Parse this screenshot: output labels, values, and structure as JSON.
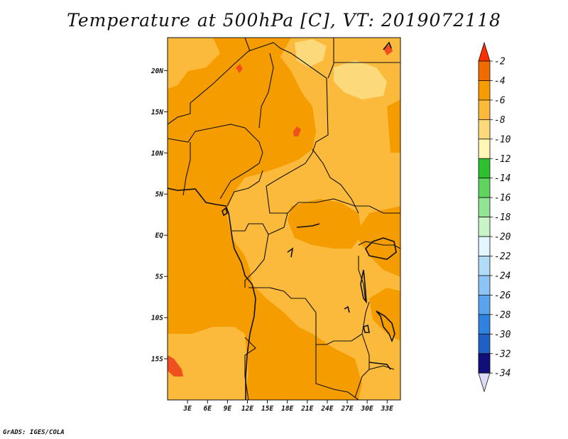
{
  "title": "Temperature at 500hPa [C], VT: 2019072118",
  "credit": "GrADS: IGES/COLA",
  "map": {
    "lon_range": [
      0,
      35
    ],
    "lat_range": [
      -20,
      24
    ],
    "lat_ticks": [
      {
        "value": 20,
        "label": "20N"
      },
      {
        "value": 15,
        "label": "15N"
      },
      {
        "value": 10,
        "label": "10N"
      },
      {
        "value": 5,
        "label": "5N"
      },
      {
        "value": 0,
        "label": "EQ"
      },
      {
        "value": -5,
        "label": "5S"
      },
      {
        "value": -10,
        "label": "10S"
      },
      {
        "value": -15,
        "label": "15S"
      }
    ],
    "lon_ticks": [
      {
        "value": 3,
        "label": "3E"
      },
      {
        "value": 6,
        "label": "6E"
      },
      {
        "value": 9,
        "label": "9E"
      },
      {
        "value": 12,
        "label": "12E"
      },
      {
        "value": 15,
        "label": "15E"
      },
      {
        "value": 18,
        "label": "18E"
      },
      {
        "value": 21,
        "label": "21E"
      },
      {
        "value": 24,
        "label": "24E"
      },
      {
        "value": 27,
        "label": "27E"
      },
      {
        "value": 30,
        "label": "30E"
      },
      {
        "value": 33,
        "label": "33E"
      }
    ],
    "field_colors": {
      "-2_to_-4": "#f06c00",
      "-4_to_-6": "#f59d00",
      "-6_to_-8": "#fbba3c",
      "-8_to_-10": "#fcd97a"
    },
    "extreme_patch_color": "#f0501e"
  },
  "colorbar": {
    "levels": [
      {
        "label": "-2",
        "color": "#ff2f00"
      },
      {
        "label": "-4",
        "color": "#f06c00"
      },
      {
        "label": "-6",
        "color": "#f59d00"
      },
      {
        "label": "-8",
        "color": "#fbba3c"
      },
      {
        "label": "-10",
        "color": "#fcd97a"
      },
      {
        "label": "-12",
        "color": "#fef6b4"
      },
      {
        "label": "-14",
        "color": "#2ec02e"
      },
      {
        "label": "-16",
        "color": "#5fd55f"
      },
      {
        "label": "-18",
        "color": "#92e592"
      },
      {
        "label": "-20",
        "color": "#c7f5c7"
      },
      {
        "label": "-22",
        "color": "#e2f7fd"
      },
      {
        "label": "-24",
        "color": "#b0dcf8"
      },
      {
        "label": "-26",
        "color": "#8cc4f6"
      },
      {
        "label": "-28",
        "color": "#5aa4ee"
      },
      {
        "label": "-30",
        "color": "#2f82e0"
      },
      {
        "label": "-32",
        "color": "#1f60c6"
      },
      {
        "label": "-34",
        "color": "#1640a4"
      }
    ],
    "low_end_color": "#0f0e7a",
    "low_cap_color": "#dcdcf8"
  }
}
